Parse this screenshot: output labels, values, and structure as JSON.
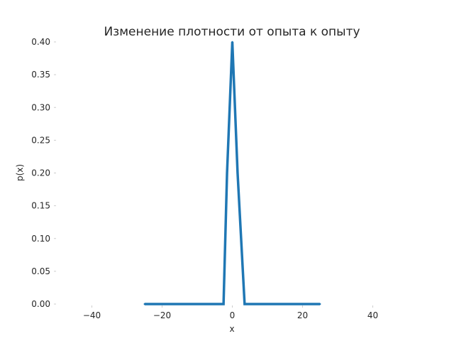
{
  "chart_data": {
    "type": "line",
    "title": "Изменение плотности от опыта к опыту",
    "xlabel": "x",
    "ylabel": "p(x)",
    "xlim": [
      -50,
      50
    ],
    "ylim": [
      0,
      0.4
    ],
    "xticks": [
      -40,
      -20,
      0,
      20,
      40
    ],
    "xtick_labels": [
      "−40",
      "−20",
      "0",
      "20",
      "40"
    ],
    "yticks": [
      0.0,
      0.05,
      0.1,
      0.15,
      0.2,
      0.25,
      0.3,
      0.35,
      0.4
    ],
    "ytick_labels": [
      "0.00",
      "0.05",
      "0.10",
      "0.15",
      "0.20",
      "0.25",
      "0.30",
      "0.35",
      "0.40"
    ],
    "grid": false,
    "color": "#1f77b4",
    "x": [
      -25,
      -2.5,
      -1.5,
      0,
      1.5,
      2.5,
      3.5,
      25
    ],
    "y": [
      0.0,
      0.0,
      0.2,
      0.4,
      0.2,
      0.1,
      0.0,
      0.0
    ]
  }
}
